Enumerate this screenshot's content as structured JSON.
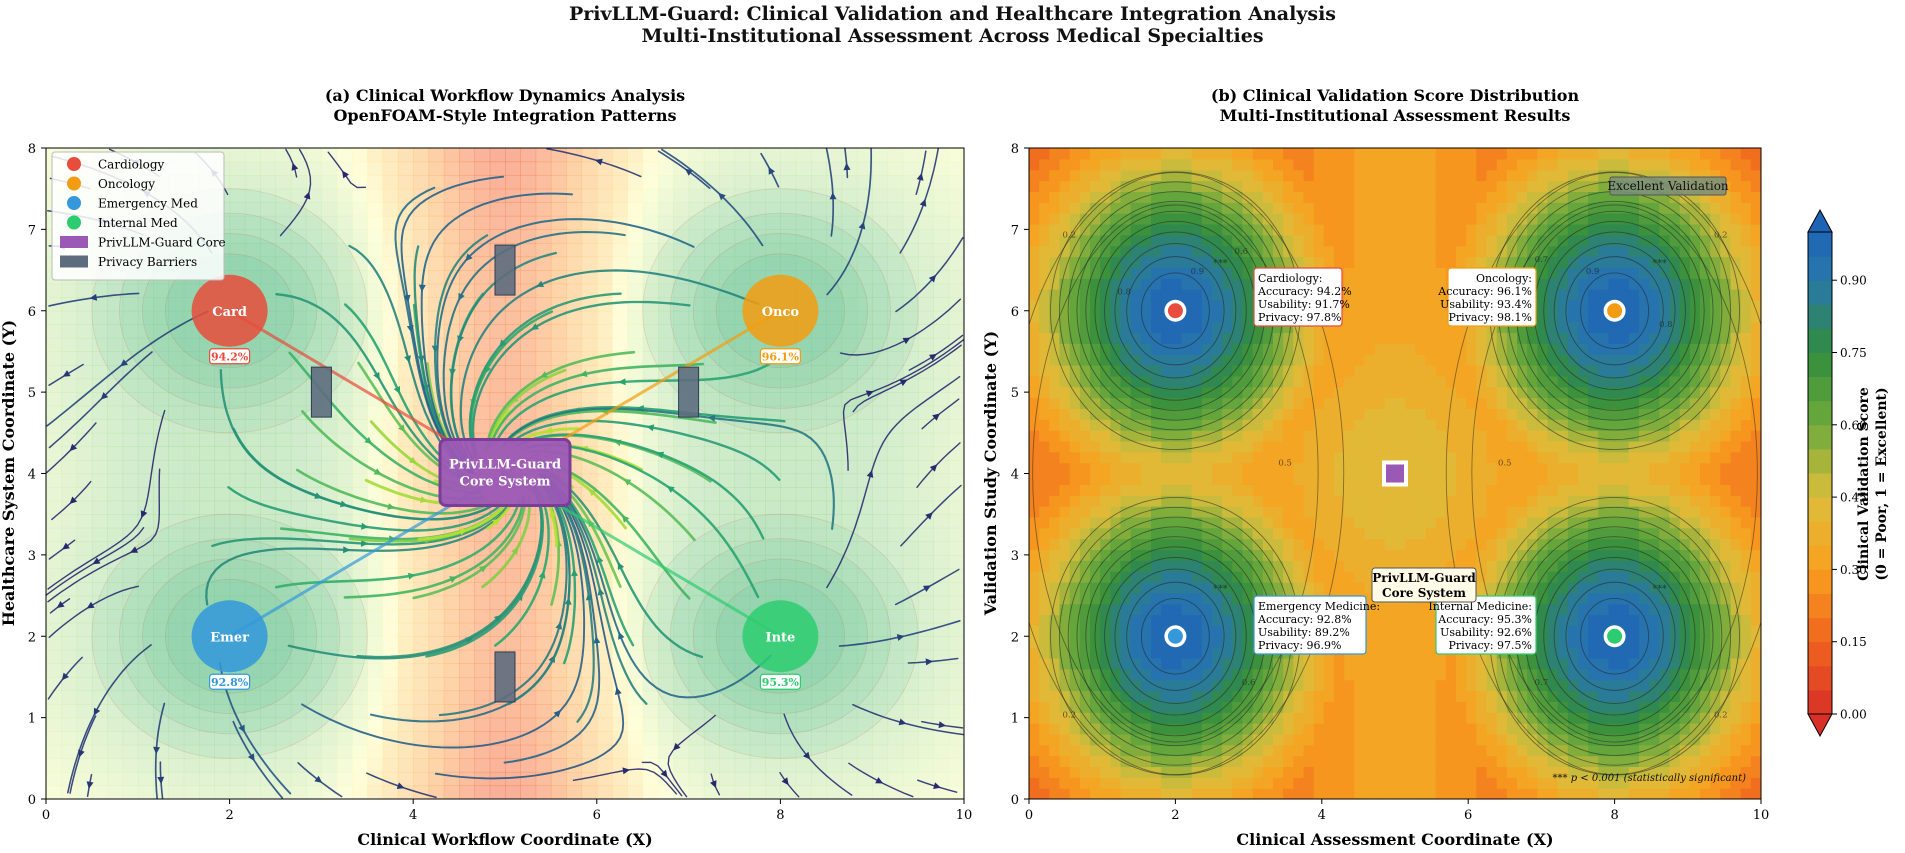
{
  "figure": {
    "title_line1": "PrivLLM-Guard: Clinical Validation and Healthcare Integration Analysis",
    "title_line2": "Multi-Institutional Assessment Across Medical Specialties"
  },
  "colors": {
    "cardiology": "#e74c3c",
    "oncology": "#f39c12",
    "emergency": "#3498db",
    "internal": "#2ecc71",
    "core": "#9b59b6",
    "barrier": "#5d6d7e"
  },
  "chart_data": [
    {
      "type": "streamplot",
      "title_line1": "(a) Clinical Workflow Dynamics Analysis",
      "title_line2": "OpenFOAM-Style Integration Patterns",
      "xlabel": "Clinical Workflow Coordinate (X)",
      "ylabel": "Healthcare System Coordinate (Y)",
      "xlim": [
        0,
        10
      ],
      "ylim": [
        0,
        8
      ],
      "xticks": [
        0,
        2,
        4,
        6,
        8,
        10
      ],
      "yticks": [
        0,
        1,
        2,
        3,
        4,
        5,
        6,
        7,
        8
      ],
      "legend_position": "upper-left",
      "legend": [
        {
          "label": "Cardiology",
          "marker": "circle",
          "color": "#e74c3c"
        },
        {
          "label": "Oncology",
          "marker": "circle",
          "color": "#f39c12"
        },
        {
          "label": "Emergency Med",
          "marker": "circle",
          "color": "#3498db"
        },
        {
          "label": "Internal Med",
          "marker": "circle",
          "color": "#2ecc71"
        },
        {
          "label": "PrivLLM-Guard Core",
          "marker": "square",
          "color": "#9b59b6"
        },
        {
          "label": "Privacy Barriers",
          "marker": "square",
          "color": "#5d6d7e"
        }
      ],
      "nodes": [
        {
          "short": "Card",
          "x": 2,
          "y": 6,
          "score": "94.2%",
          "color": "#e74c3c"
        },
        {
          "short": "Onco",
          "x": 8,
          "y": 6,
          "score": "96.1%",
          "color": "#f39c12"
        },
        {
          "short": "Emer",
          "x": 2,
          "y": 2,
          "score": "92.8%",
          "color": "#3498db"
        },
        {
          "short": "Inte",
          "x": 8,
          "y": 2,
          "score": "95.3%",
          "color": "#2ecc71"
        }
      ],
      "core": {
        "label_line1": "PrivLLM-Guard",
        "label_line2": "Core System",
        "x": 5,
        "y": 4
      },
      "barriers": [
        {
          "x": 3,
          "y": 5
        },
        {
          "x": 7,
          "y": 5
        },
        {
          "x": 5,
          "y": 6.5
        },
        {
          "x": 5,
          "y": 1.5
        }
      ]
    },
    {
      "type": "heatmap",
      "title_line1": "(b) Clinical Validation Score Distribution",
      "title_line2": "Multi-Institutional Assessment Results",
      "xlabel": "Clinical Assessment Coordinate (X)",
      "ylabel": "Validation Study Coordinate (Y)",
      "xlim": [
        0,
        10
      ],
      "ylim": [
        0,
        8
      ],
      "xticks": [
        0,
        2,
        4,
        6,
        8,
        10
      ],
      "yticks": [
        0,
        1,
        2,
        3,
        4,
        5,
        6,
        7,
        8
      ],
      "colorbar": {
        "label_line1": "Clinical Validation Score",
        "label_line2": "(0 = Poor, 1 = Excellent)",
        "ticks": [
          "0.00",
          "0.15",
          "0.30",
          "0.45",
          "0.60",
          "0.75",
          "0.90"
        ],
        "range": [
          0,
          1
        ]
      },
      "peaks": [
        {
          "x": 2,
          "y": 6,
          "color": "#e74c3c"
        },
        {
          "x": 8,
          "y": 6,
          "color": "#f39c12"
        },
        {
          "x": 2,
          "y": 2,
          "color": "#3498db"
        },
        {
          "x": 8,
          "y": 2,
          "color": "#2ecc71"
        }
      ],
      "contour_labels": [
        "0.2",
        "0.5",
        "0.6",
        "0.7",
        "0.8",
        "0.9"
      ],
      "significance_marker": "***",
      "annotations": [
        {
          "name": "Cardiology",
          "title": "Cardiology:",
          "accuracy": "Accuracy: 94.2%",
          "usability": "Usability: 91.7%",
          "privacy": "Privacy: 97.8%",
          "color": "#e74c3c"
        },
        {
          "name": "Oncology",
          "title": "Oncology:",
          "accuracy": "Accuracy: 96.1%",
          "usability": "Usability: 93.4%",
          "privacy": "Privacy: 98.1%",
          "color": "#f39c12"
        },
        {
          "name": "Emergency Medicine",
          "title": "Emergency Medicine:",
          "accuracy": "Accuracy: 92.8%",
          "usability": "Usability: 89.2%",
          "privacy": "Privacy: 96.9%",
          "color": "#3498db"
        },
        {
          "name": "Internal Medicine",
          "title": "Internal Medicine:",
          "accuracy": "Accuracy: 95.3%",
          "usability": "Usability: 92.6%",
          "privacy": "Privacy: 97.5%",
          "color": "#2ecc71"
        }
      ],
      "core_label_line1": "PrivLLM-Guard",
      "core_label_line2": "Core System",
      "excellent_label": "Excellent Validation",
      "significance_note": "*** p < 0.001 (statistically significant)"
    }
  ]
}
